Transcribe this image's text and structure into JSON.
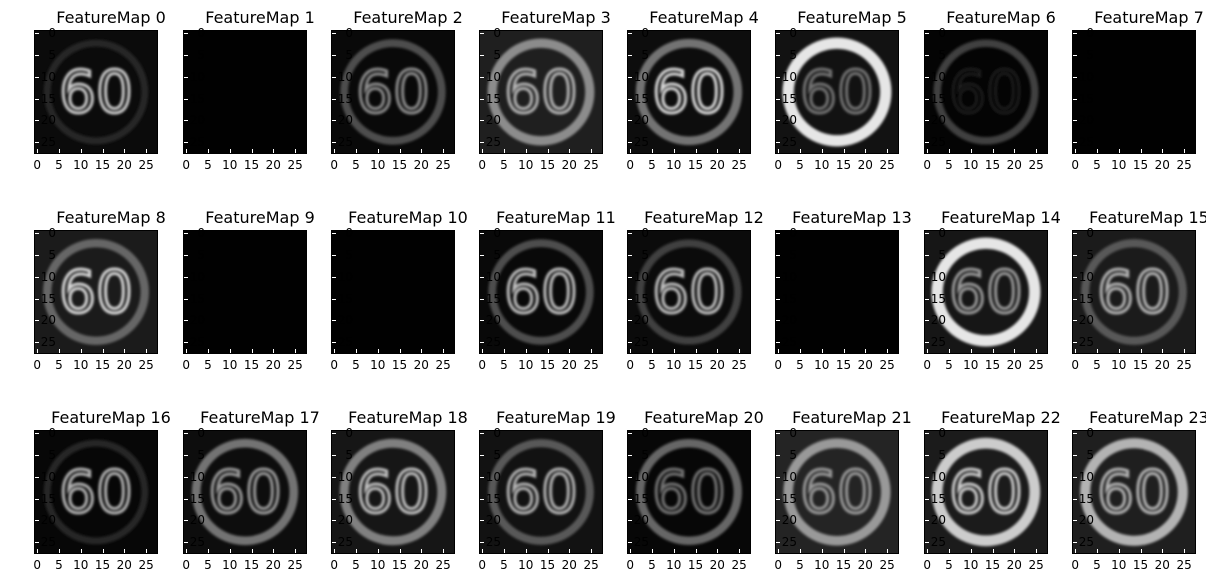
{
  "figure": {
    "xticks": [
      "0",
      "5",
      "10",
      "15",
      "20",
      "25"
    ],
    "yticks": [
      "0",
      "5",
      "10",
      "15",
      "20",
      "25"
    ],
    "image_size": 28,
    "colormap": "gray",
    "sign_text": "60",
    "panels": [
      {
        "title": "FeatureMap 0",
        "ring": 0.15,
        "digits": 0.8,
        "noise": 0.12
      },
      {
        "title": "FeatureMap 1",
        "ring": 0.0,
        "digits": 0.0,
        "noise": 0.01
      },
      {
        "title": "FeatureMap 2",
        "ring": 0.3,
        "digits": 0.55,
        "noise": 0.1
      },
      {
        "title": "FeatureMap 3",
        "ring": 0.55,
        "digits": 0.7,
        "noise": 0.35
      },
      {
        "title": "FeatureMap 4",
        "ring": 0.45,
        "digits": 0.85,
        "noise": 0.15
      },
      {
        "title": "FeatureMap 5",
        "ring": 0.9,
        "digits": 0.45,
        "noise": 0.2
      },
      {
        "title": "FeatureMap 6",
        "ring": 0.25,
        "digits": 0.1,
        "noise": 0.05
      },
      {
        "title": "FeatureMap 7",
        "ring": 0.0,
        "digits": 0.0,
        "noise": 0.01
      },
      {
        "title": "FeatureMap 8",
        "ring": 0.4,
        "digits": 0.85,
        "noise": 0.3
      },
      {
        "title": "FeatureMap 9",
        "ring": 0.0,
        "digits": 0.0,
        "noise": 0.01
      },
      {
        "title": "FeatureMap 10",
        "ring": 0.0,
        "digits": 0.0,
        "noise": 0.01
      },
      {
        "title": "FeatureMap 11",
        "ring": 0.3,
        "digits": 0.75,
        "noise": 0.1
      },
      {
        "title": "FeatureMap 12",
        "ring": 0.25,
        "digits": 0.75,
        "noise": 0.12
      },
      {
        "title": "FeatureMap 13",
        "ring": 0.0,
        "digits": 0.0,
        "noise": 0.01
      },
      {
        "title": "FeatureMap 14",
        "ring": 0.9,
        "digits": 0.6,
        "noise": 0.25
      },
      {
        "title": "FeatureMap 15",
        "ring": 0.35,
        "digits": 0.7,
        "noise": 0.3
      },
      {
        "title": "FeatureMap 16",
        "ring": 0.15,
        "digits": 0.7,
        "noise": 0.08
      },
      {
        "title": "FeatureMap 17",
        "ring": 0.45,
        "digits": 0.6,
        "noise": 0.15
      },
      {
        "title": "FeatureMap 18",
        "ring": 0.5,
        "digits": 0.75,
        "noise": 0.25
      },
      {
        "title": "FeatureMap 19",
        "ring": 0.35,
        "digits": 0.7,
        "noise": 0.2
      },
      {
        "title": "FeatureMap 20",
        "ring": 0.4,
        "digits": 0.45,
        "noise": 0.08
      },
      {
        "title": "FeatureMap 21",
        "ring": 0.6,
        "digits": 0.6,
        "noise": 0.4
      },
      {
        "title": "FeatureMap 22",
        "ring": 0.8,
        "digits": 0.8,
        "noise": 0.3
      },
      {
        "title": "FeatureMap 23",
        "ring": 0.7,
        "digits": 0.7,
        "noise": 0.35
      }
    ]
  }
}
